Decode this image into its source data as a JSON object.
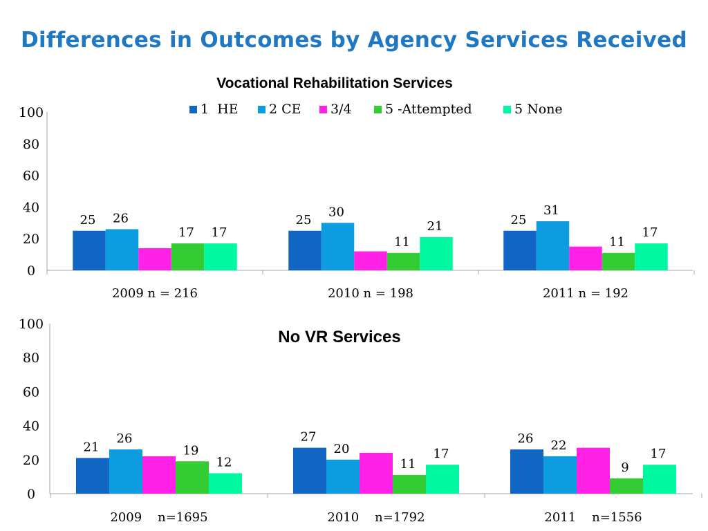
{
  "slide": {
    "title": "Differences in Outcomes by Agency Services Received"
  },
  "colors": {
    "1  HE": "#1166c4",
    "2 CE": "#0e9ce0",
    "3/4": "#ff21e6",
    "5 -Attempted": "#33cc33",
    "5 None": "#00f8a0"
  },
  "chart_data": [
    {
      "type": "bar",
      "title": "Vocational Rehabilitation Services",
      "categories": [
        "2009 n = 216",
        "2010 n = 198",
        "2011 n = 192"
      ],
      "ylim": [
        0,
        100
      ],
      "yticks": [
        "0",
        "20",
        "40",
        "60",
        "80",
        "100"
      ],
      "legend": "top",
      "series": [
        {
          "name": "1  HE",
          "values": [
            25,
            25,
            25
          ],
          "labels": [
            "25",
            "25",
            "25"
          ]
        },
        {
          "name": "2 CE",
          "values": [
            26,
            30,
            31
          ],
          "labels": [
            "26",
            "30",
            "31"
          ]
        },
        {
          "name": "3/4",
          "values": [
            14,
            12,
            15
          ],
          "labels": [
            "",
            "",
            ""
          ]
        },
        {
          "name": "5 -Attempted",
          "values": [
            17,
            11,
            11
          ],
          "labels": [
            "17",
            "11",
            "11"
          ]
        },
        {
          "name": "5 None",
          "values": [
            17,
            21,
            17
          ],
          "labels": [
            "17",
            "21",
            "17"
          ]
        }
      ]
    },
    {
      "type": "bar",
      "title": "No VR Services",
      "categories": [
        "2009    n=1695",
        "2010    n=1792",
        "2011    n=1556"
      ],
      "ylim": [
        0,
        100
      ],
      "yticks": [
        "0",
        "20",
        "40",
        "60",
        "80",
        "100"
      ],
      "legend": "none",
      "series": [
        {
          "name": "1  HE",
          "values": [
            21,
            27,
            26
          ],
          "labels": [
            "21",
            "27",
            "26"
          ]
        },
        {
          "name": "2 CE",
          "values": [
            26,
            20,
            22
          ],
          "labels": [
            "26",
            "20",
            "22"
          ]
        },
        {
          "name": "3/4",
          "values": [
            22,
            24,
            27
          ],
          "labels": [
            "",
            "",
            ""
          ]
        },
        {
          "name": "5 -Attempted",
          "values": [
            19,
            11,
            9
          ],
          "labels": [
            "19",
            "11",
            "9"
          ]
        },
        {
          "name": "5 None",
          "values": [
            12,
            17,
            17
          ],
          "labels": [
            "12",
            "17",
            "17"
          ]
        }
      ]
    }
  ]
}
